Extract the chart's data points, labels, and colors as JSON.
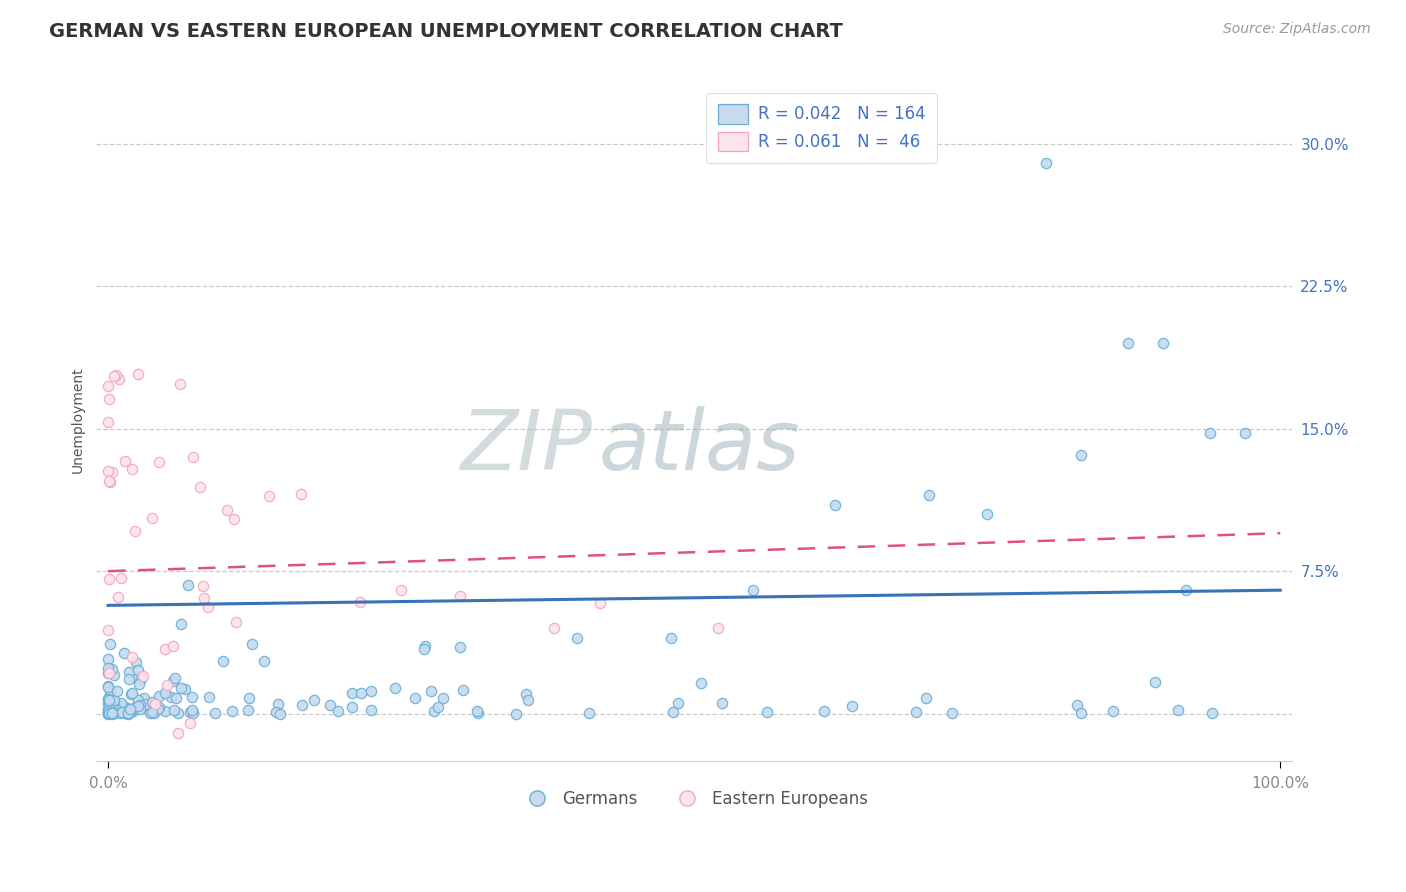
{
  "title": "GERMAN VS EASTERN EUROPEAN UNEMPLOYMENT CORRELATION CHART",
  "source": "Source: ZipAtlas.com",
  "ylabel": "Unemployment",
  "xlabel": "",
  "xlim": [
    -0.01,
    1.01
  ],
  "ylim": [
    -0.025,
    0.335
  ],
  "yticks": [
    0.0,
    0.075,
    0.15,
    0.225,
    0.3
  ],
  "ytick_labels": [
    "",
    "7.5%",
    "15.0%",
    "22.5%",
    "30.0%"
  ],
  "xtick_labels": [
    "0.0%",
    "100.0%"
  ],
  "watermark_zip": "ZIP",
  "watermark_atlas": "atlas",
  "blue_color": "#6baed6",
  "blue_fill": "#c6dbef",
  "pink_color": "#f4a6bd",
  "pink_fill": "#fce4ec",
  "blue_line_color": "#3873b8",
  "pink_line_color": "#e05080",
  "legend_blue_label": "R = 0.042   N = 164",
  "legend_pink_label": "R = 0.061   N =  46",
  "legend_german": "Germans",
  "legend_eastern": "Eastern Europeans",
  "N_blue": 164,
  "N_pink": 46,
  "blue_trend_y0": 0.057,
  "blue_trend_y1": 0.065,
  "pink_trend_y0": 0.075,
  "pink_trend_y1": 0.095,
  "background_color": "#ffffff",
  "grid_color": "#cccccc",
  "title_fontsize": 14,
  "axis_label_fontsize": 10,
  "tick_fontsize": 11,
  "source_fontsize": 10,
  "watermark_fontsize_zip": 60,
  "watermark_fontsize_atlas": 60,
  "watermark_color_zip": "#b0bec5",
  "watermark_color_atlas": "#90a4ae",
  "title_color": "#333333",
  "tick_color_right": "#4472c4",
  "tick_color_bottom": "#888888"
}
